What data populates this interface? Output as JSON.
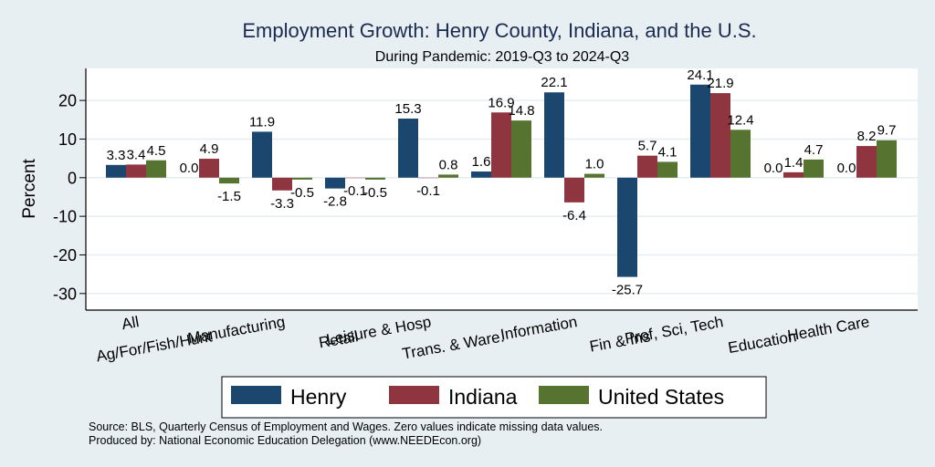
{
  "chart_data": {
    "type": "bar",
    "title": "Employment Growth: Henry County, Indiana, and the U.S.",
    "subtitle": "During Pandemic: 2019-Q3 to 2024-Q3",
    "xlabel": "",
    "ylabel": "Percent",
    "ylim": [
      -34.3,
      28.3
    ],
    "yticks": [
      -30,
      -20,
      -10,
      0,
      10,
      20
    ],
    "grid": true,
    "legend_position": "bottom",
    "categories": [
      "All",
      "Ag/For/Fish/Hunt",
      "Manufacturing",
      "Retail",
      "Leisure & Hosp",
      "Trans. & Ware.",
      "Information",
      "Fin & Ins",
      "Prof, Sci, Tech",
      "Education",
      "Health Care"
    ],
    "series": [
      {
        "name": "Henry",
        "color": "#1b466e",
        "values": [
          3.3,
          0.0,
          11.9,
          -2.8,
          15.3,
          1.6,
          22.1,
          -25.7,
          24.1,
          0.0,
          0.0
        ]
      },
      {
        "name": "Indiana",
        "color": "#8f3540",
        "values": [
          3.4,
          4.9,
          -3.3,
          -0.1,
          -0.1,
          16.9,
          -6.4,
          5.7,
          21.9,
          1.4,
          8.2
        ]
      },
      {
        "name": "United States",
        "color": "#567430",
        "values": [
          4.5,
          -1.5,
          -0.5,
          -0.5,
          0.8,
          14.8,
          1.0,
          4.1,
          12.4,
          4.7,
          9.7
        ]
      }
    ],
    "notes": [
      "Source: BLS, Quarterly Census of Employment and Wages. Zero values indicate missing data values.",
      "Produced by: National Economic Education Delegation (www.NEEDEcon.org)"
    ]
  }
}
